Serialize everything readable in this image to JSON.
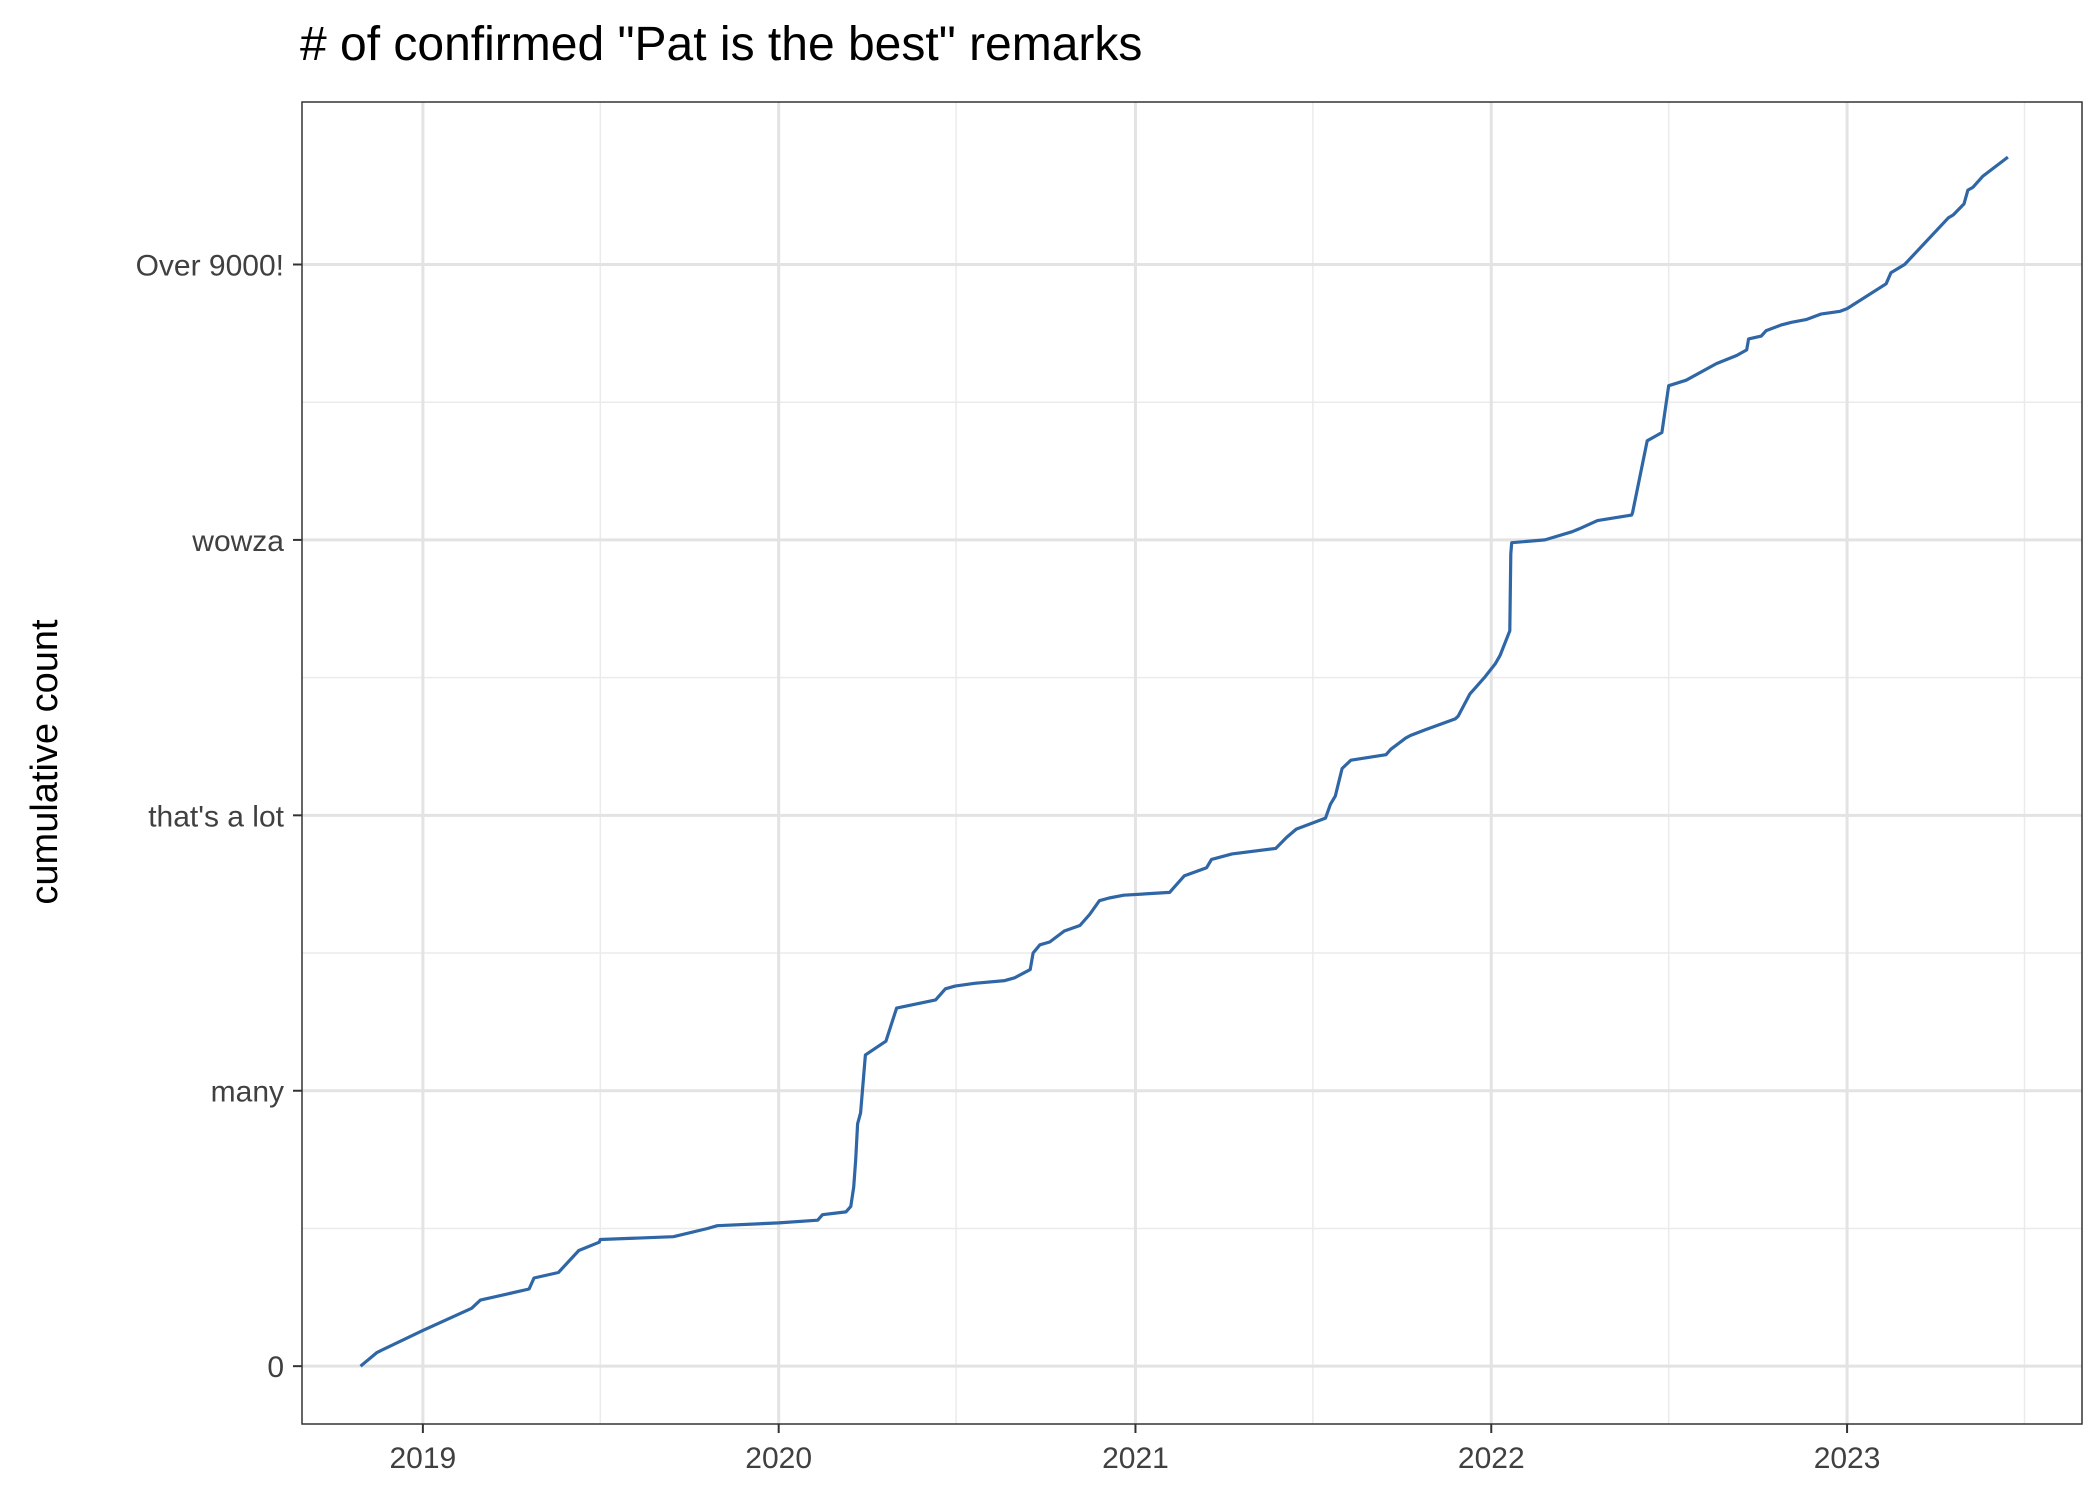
{
  "chart_data": {
    "type": "line",
    "title": "# of confirmed \"Pat is the best\" remarks",
    "xlabel": "",
    "ylabel": "cumulative count",
    "x_axis": {
      "type": "date",
      "range": [
        "2018-08-30",
        "2023-08-30"
      ],
      "ticks": [
        "2019-01-01",
        "2020-01-01",
        "2021-01-01",
        "2022-01-01",
        "2023-01-01"
      ],
      "tick_labels": [
        "2019",
        "2020",
        "2021",
        "2022",
        "2023"
      ],
      "minor_ticks": [
        "2019-07-02",
        "2020-07-01",
        "2021-07-02",
        "2022-07-02",
        "2023-07-02"
      ]
    },
    "y_axis": {
      "range": [
        -0.21,
        4.59
      ],
      "tick_values": [
        0,
        1,
        2,
        3,
        4
      ],
      "tick_labels": [
        "0",
        "many",
        "that's a lot",
        "wowza",
        "Over 9000!"
      ]
    },
    "grid": true,
    "legend": "none",
    "series": [
      {
        "color": "#2F66A6",
        "x": [
          "2018-10-29",
          "2018-11-15",
          "2019-01-01",
          "2019-02-20",
          "2019-03-01",
          "2019-04-20",
          "2019-04-25",
          "2019-05-20",
          "2019-06-10",
          "2019-07-01",
          "2019-07-02",
          "2019-09-15",
          "2019-10-20",
          "2019-10-30",
          "2020-01-01",
          "2020-02-10",
          "2020-02-15",
          "2020-03-10",
          "2020-03-15",
          "2020-03-18",
          "2020-03-20",
          "2020-03-22",
          "2020-03-25",
          "2020-03-30",
          "2020-04-20",
          "2020-05-01",
          "2020-06-10",
          "2020-06-20",
          "2020-06-30",
          "2020-07-20",
          "2020-08-20",
          "2020-08-30",
          "2020-09-15",
          "2020-09-18",
          "2020-09-25",
          "2020-10-05",
          "2020-10-20",
          "2020-11-05",
          "2020-11-15",
          "2020-11-25",
          "2020-12-05",
          "2020-12-20",
          "2021-02-05",
          "2021-02-20",
          "2021-03-15",
          "2021-03-20",
          "2021-04-10",
          "2021-05-25",
          "2021-06-05",
          "2021-06-15",
          "2021-07-15",
          "2021-07-20",
          "2021-07-25",
          "2021-08-01",
          "2021-08-10",
          "2021-09-15",
          "2021-09-20",
          "2021-10-05",
          "2021-10-10",
          "2021-10-25",
          "2021-11-25",
          "2021-11-28",
          "2021-12-10",
          "2021-12-15",
          "2021-12-25",
          "2022-01-05",
          "2022-01-10",
          "2022-01-20",
          "2022-01-21",
          "2022-01-22",
          "2022-02-25",
          "2022-03-25",
          "2022-04-01",
          "2022-04-20",
          "2022-05-25",
          "2022-05-26",
          "2022-06-10",
          "2022-06-25",
          "2022-07-02",
          "2022-07-20",
          "2022-08-20",
          "2022-09-10",
          "2022-09-20",
          "2022-09-22",
          "2022-10-05",
          "2022-10-10",
          "2022-10-25",
          "2022-11-05",
          "2022-11-20",
          "2022-12-05",
          "2022-12-25",
          "2023-01-01",
          "2023-02-10",
          "2023-02-15",
          "2023-03-01",
          "2023-04-15",
          "2023-04-20",
          "2023-05-01",
          "2023-05-05",
          "2023-05-10",
          "2023-05-20",
          "2023-06-15"
        ],
        "y": [
          0,
          0.05,
          0.13,
          0.21,
          0.24,
          0.28,
          0.32,
          0.34,
          0.42,
          0.45,
          0.46,
          0.47,
          0.5,
          0.51,
          0.52,
          0.53,
          0.55,
          0.56,
          0.58,
          0.65,
          0.75,
          0.88,
          0.92,
          1.13,
          1.18,
          1.3,
          1.33,
          1.37,
          1.38,
          1.39,
          1.4,
          1.41,
          1.44,
          1.5,
          1.53,
          1.54,
          1.58,
          1.6,
          1.64,
          1.69,
          1.7,
          1.71,
          1.72,
          1.78,
          1.81,
          1.84,
          1.86,
          1.88,
          1.92,
          1.95,
          1.99,
          2.04,
          2.07,
          2.17,
          2.2,
          2.22,
          2.24,
          2.28,
          2.29,
          2.31,
          2.35,
          2.36,
          2.44,
          2.46,
          2.5,
          2.55,
          2.58,
          2.67,
          2.95,
          2.99,
          3.0,
          3.03,
          3.04,
          3.07,
          3.09,
          3.1,
          3.36,
          3.39,
          3.56,
          3.58,
          3.64,
          3.67,
          3.69,
          3.73,
          3.74,
          3.76,
          3.78,
          3.79,
          3.8,
          3.82,
          3.83,
          3.84,
          3.93,
          3.97,
          4.0,
          4.17,
          4.18,
          4.22,
          4.27,
          4.28,
          4.32,
          4.39
        ]
      }
    ]
  }
}
